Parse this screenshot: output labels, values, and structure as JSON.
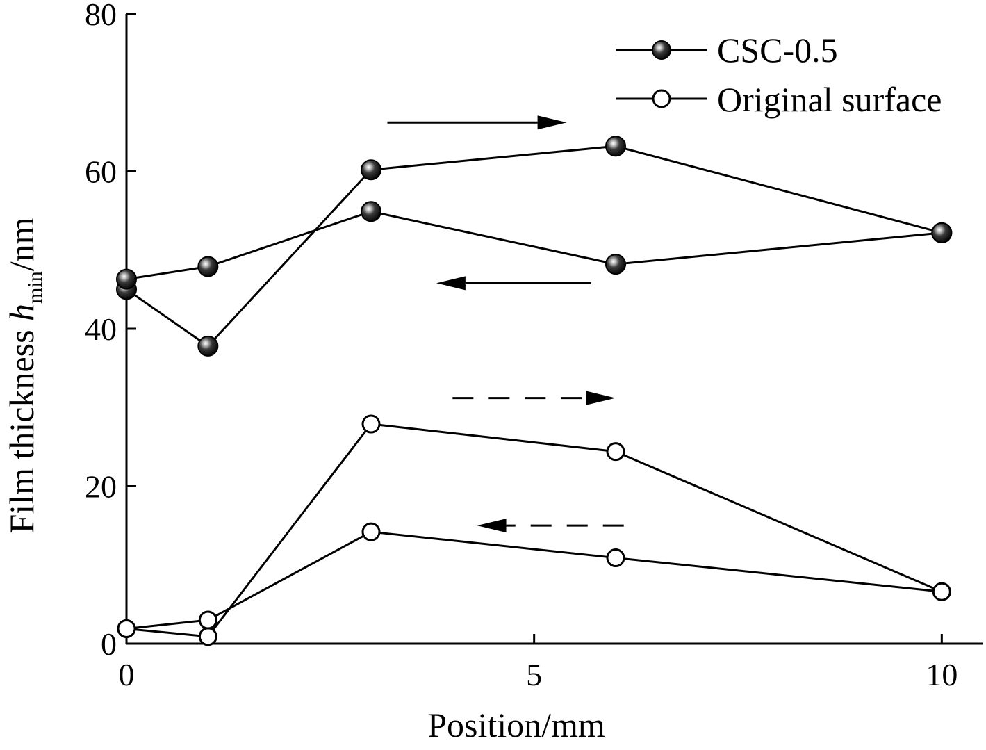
{
  "chart_data": {
    "type": "line",
    "xlabel": "Position/mm",
    "ylabel": {
      "prefix": "Film thickness ",
      "symbol": "h",
      "subscript": "min",
      "suffix": "/nm"
    },
    "xlim": [
      0,
      10.5
    ],
    "ylim": [
      0,
      80
    ],
    "xticks": [
      0,
      5,
      10
    ],
    "yticks": [
      0,
      20,
      40,
      60,
      80
    ],
    "grid": false,
    "legend": {
      "placement": "top-right",
      "entries": [
        {
          "name": "CSC-0.5",
          "marker": "filled-sphere"
        },
        {
          "name": "Original surface",
          "marker": "open-circle"
        }
      ]
    },
    "series": [
      {
        "group": "CSC-0.5",
        "direction": "forward",
        "marker": "filled-sphere",
        "x": [
          0,
          1,
          3,
          6,
          10
        ],
        "y": [
          45,
          37.8,
          60.2,
          63.2,
          52.2
        ]
      },
      {
        "group": "CSC-0.5",
        "direction": "backward",
        "marker": "filled-sphere",
        "x": [
          0,
          1,
          3,
          6,
          10
        ],
        "y": [
          46.3,
          47.9,
          54.9,
          48.2,
          52.2
        ]
      },
      {
        "group": "Original surface",
        "direction": "forward",
        "marker": "open-circle",
        "x": [
          0,
          1,
          3,
          6,
          10
        ],
        "y": [
          1.9,
          0.9,
          27.9,
          24.4,
          6.6
        ]
      },
      {
        "group": "Original surface",
        "direction": "backward",
        "marker": "open-circle",
        "x": [
          0,
          1,
          3,
          6,
          10
        ],
        "y": [
          1.9,
          3.0,
          14.2,
          10.9,
          6.6
        ]
      }
    ],
    "annotations": [
      {
        "type": "arrow",
        "style": "solid",
        "direction": "right",
        "x": [
          3.2,
          5.4
        ],
        "y": 66.2
      },
      {
        "type": "arrow",
        "style": "solid",
        "direction": "left",
        "x": [
          5.7,
          3.8
        ],
        "y": 45.8
      },
      {
        "type": "arrow",
        "style": "dashed",
        "direction": "right",
        "x": [
          4.0,
          6.0
        ],
        "y": 31.2
      },
      {
        "type": "arrow",
        "style": "dashed",
        "direction": "left",
        "x": [
          6.1,
          4.3
        ],
        "y": 15.0
      }
    ]
  }
}
